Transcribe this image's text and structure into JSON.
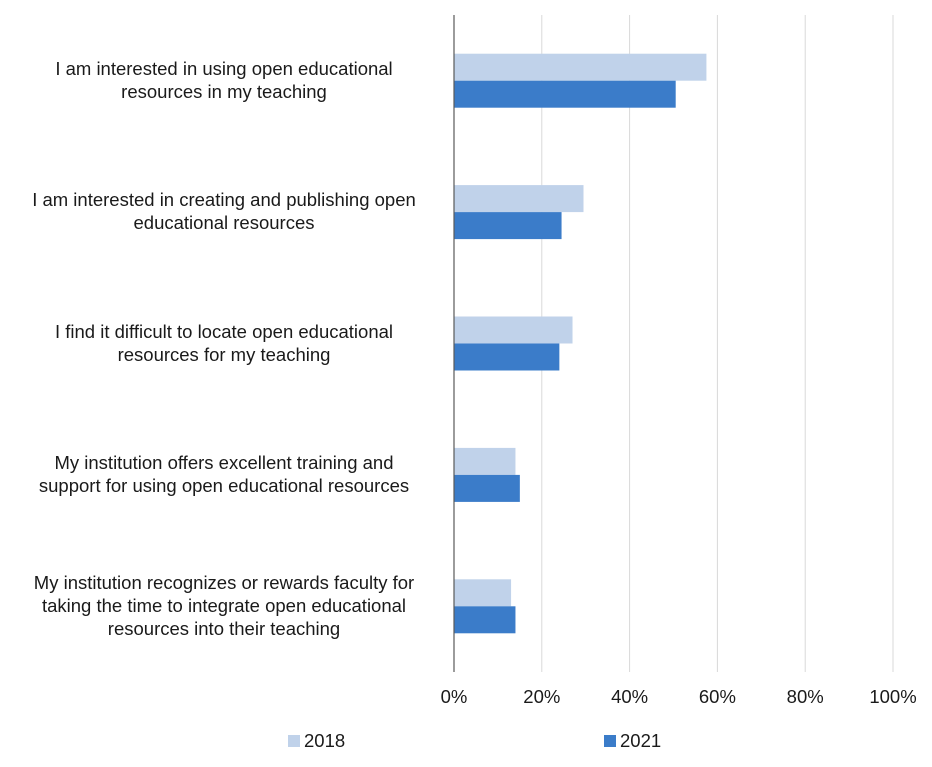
{
  "chart_data": {
    "type": "bar",
    "orientation": "horizontal",
    "categories": [
      "I am interested in using open educational resources in my teaching",
      "I am interested in creating and publishing open educational resources",
      "I find it difficult to locate open educational resources for my teaching",
      "My institution offers excellent training and support for using open educational resources",
      "My institution recognizes or rewards faculty for taking the time to integrate open educational resources into their  teaching"
    ],
    "category_lines": [
      [
        "I am interested in using open educational",
        "resources in my teaching"
      ],
      [
        "I am interested in creating and publishing open",
        "educational resources"
      ],
      [
        "I find it difficult to locate open educational",
        "resources for my teaching"
      ],
      [
        "My institution offers excellent training and",
        "support for using open educational resources"
      ],
      [
        "My institution recognizes or rewards faculty for",
        "taking the time to integrate open educational",
        "resources into their  teaching"
      ]
    ],
    "series": [
      {
        "name": "2018",
        "color": "#c0d2ea",
        "values": [
          57.5,
          29.5,
          27,
          14,
          13
        ]
      },
      {
        "name": "2021",
        "color": "#3b7cc9",
        "values": [
          50.5,
          24.5,
          24,
          15,
          14
        ]
      }
    ],
    "xlim": [
      0,
      100
    ],
    "x_ticks": [
      0,
      20,
      40,
      60,
      80,
      100
    ],
    "x_tick_labels": [
      "0%",
      "20%",
      "40%",
      "60%",
      "80%",
      "100%"
    ],
    "grid": true,
    "legend_position": "bottom"
  }
}
